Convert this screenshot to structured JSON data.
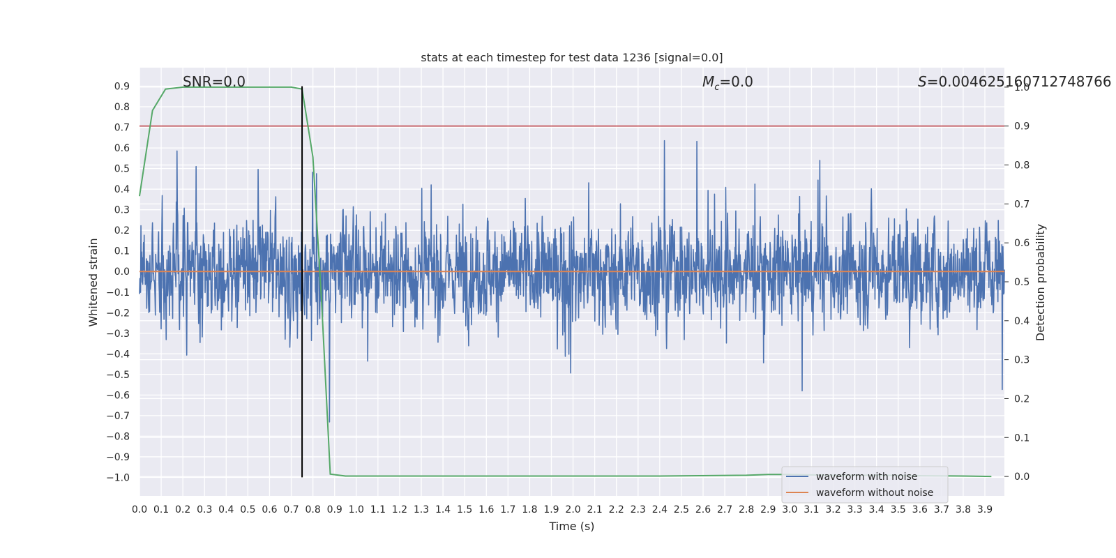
{
  "chart_data": {
    "type": "line",
    "title": "stats at each timestep for test data 1236 [signal=0.0]",
    "xlabel": "Time (s)",
    "ylabel_left": "Whitened strain",
    "ylabel_right": "Detection probability",
    "xlim": [
      0.0,
      3.99
    ],
    "ylim_left": [
      -1.09,
      0.99
    ],
    "ylim_right": [
      -0.05,
      1.05
    ],
    "x_ticks": [
      "0.0",
      "0.1",
      "0.2",
      "0.3",
      "0.4",
      "0.5",
      "0.6",
      "0.7",
      "0.8",
      "0.9",
      "1.0",
      "1.1",
      "1.2",
      "1.3",
      "1.4",
      "1.5",
      "1.6",
      "1.7",
      "1.8",
      "1.9",
      "2.0",
      "2.1",
      "2.2",
      "2.3",
      "2.4",
      "2.5",
      "2.6",
      "2.7",
      "2.8",
      "2.9",
      "3.0",
      "3.1",
      "3.2",
      "3.3",
      "3.4",
      "3.5",
      "3.6",
      "3.7",
      "3.8",
      "3.9"
    ],
    "y_ticks_left": [
      "0.9",
      "0.8",
      "0.7",
      "0.6",
      "0.5",
      "0.4",
      "0.3",
      "0.2",
      "0.1",
      "0.0",
      "−0.1",
      "−0.2",
      "−0.3",
      "−0.4",
      "−0.5",
      "−0.6",
      "−0.7",
      "−0.8",
      "−0.9",
      "−1.0"
    ],
    "y_ticks_right": [
      "1.0",
      "0.9",
      "0.8",
      "0.7",
      "0.6",
      "0.5",
      "0.4",
      "0.3",
      "0.2",
      "0.1",
      "0.0"
    ],
    "annotations": {
      "snr": "SNR=0.0",
      "mc_symbol": "M",
      "mc_sub": "c",
      "mc_value": "=0.0",
      "s_symbol": "S",
      "s_value": "=0.004625160712748766"
    },
    "series": [
      {
        "name": "waveform with noise",
        "axis": "left",
        "color": "#4c72b0",
        "description": "dense noise strain signal, approx within [-1.0, 0.9]",
        "sample_count": 2400,
        "typical_amplitude": 0.3
      },
      {
        "name": "waveform without noise",
        "axis": "left",
        "color": "#dd8452",
        "values_constant": 0.0
      },
      {
        "name": "detection probability",
        "axis": "right",
        "color": "#55a868",
        "x": [
          0.0,
          0.06,
          0.12,
          0.2,
          0.3,
          0.5,
          0.7,
          0.75,
          0.8,
          0.84,
          0.88,
          0.95,
          1.2,
          1.6,
          2.0,
          2.4,
          2.8,
          2.9,
          3.0,
          3.1,
          3.2,
          3.4,
          3.6,
          3.8,
          3.93
        ],
        "y": [
          0.72,
          0.94,
          0.995,
          1.0,
          1.0,
          1.0,
          1.0,
          0.995,
          0.82,
          0.45,
          0.006,
          0.001,
          0.001,
          0.001,
          0.001,
          0.001,
          0.003,
          0.005,
          0.005,
          0.004,
          0.003,
          0.003,
          0.002,
          0.001,
          0.0
        ]
      }
    ],
    "threshold_line": {
      "axis": "right",
      "value": 0.9,
      "color": "#c44e52"
    },
    "marker_line": {
      "x": 0.75,
      "y_from": -1.0,
      "y_to": 0.9,
      "color": "#000000"
    },
    "legend": {
      "position": "bottom-right",
      "entries": [
        {
          "label": "waveform with noise",
          "color": "#4c72b0"
        },
        {
          "label": "waveform without noise",
          "color": "#dd8452"
        }
      ]
    },
    "grid": true
  }
}
